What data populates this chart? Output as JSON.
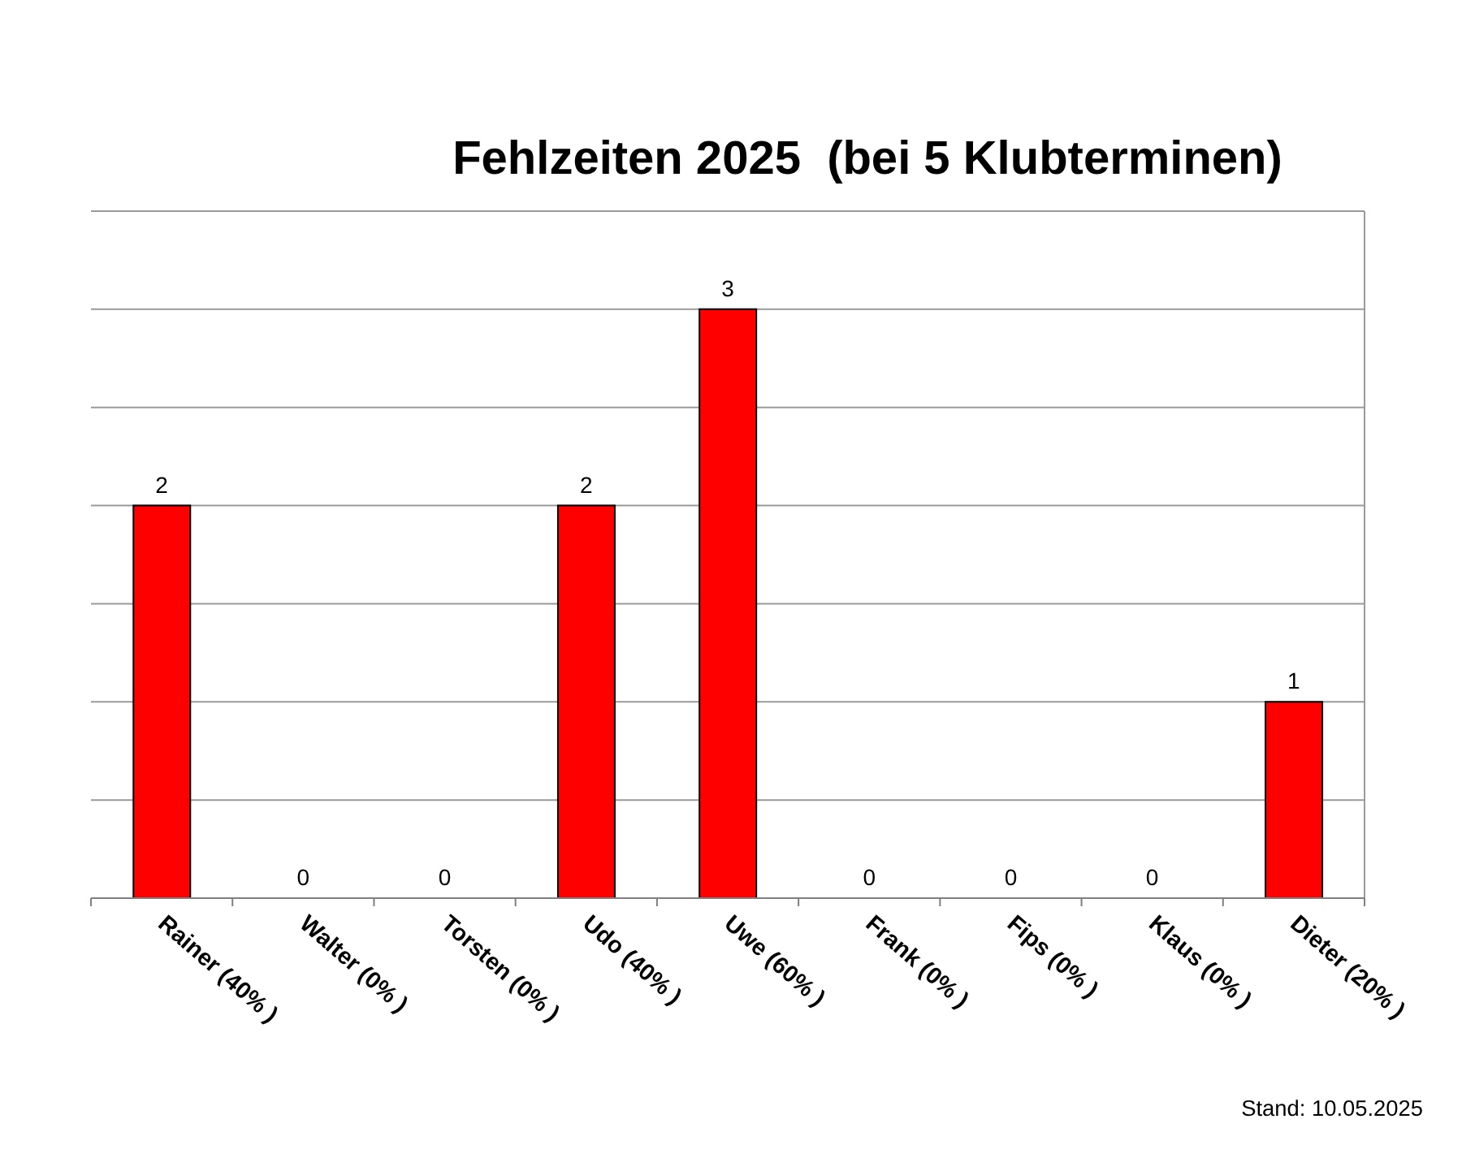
{
  "chart_data": {
    "type": "bar",
    "title": "Fehlzeiten 2025  (bei 5 Klubterminen)",
    "categories": [
      "Rainer (40% )",
      "Walter (0% )",
      "Torsten (0% )",
      "Udo (40% )",
      "Uwe (60% )",
      "Frank (0% )",
      "Fips (0% )",
      "Klaus (0% )",
      "Dieter (20% )"
    ],
    "values": [
      2,
      0,
      0,
      2,
      3,
      0,
      0,
      0,
      1
    ],
    "color": "#ff0000",
    "ylim": [
      0,
      3.5
    ],
    "yticks": [
      {
        "value": 0,
        "label": null
      },
      {
        "value": 0.5,
        "label": null
      },
      {
        "value": 1,
        "label": null
      },
      {
        "value": 1.5,
        "label": null
      },
      {
        "value": 2,
        "label": null
      },
      {
        "value": 2.5,
        "label": null
      },
      {
        "value": 3,
        "label": null
      },
      {
        "value": 3.5,
        "label": null
      }
    ],
    "grid": "y",
    "tick_labels": "x",
    "data_labels": true,
    "annotations": [
      "Stand: 10.05.2025"
    ]
  }
}
